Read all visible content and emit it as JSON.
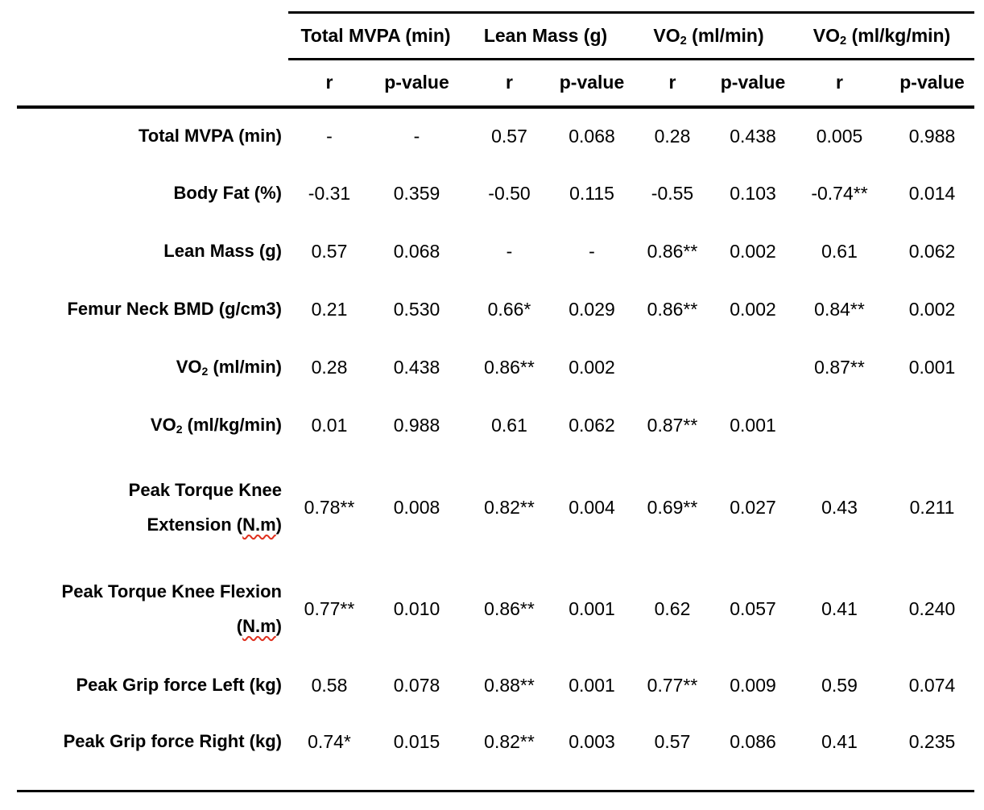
{
  "table": {
    "col_groups": [
      {
        "pre": "Total MVPA (min)",
        "sub": "",
        "post": ""
      },
      {
        "pre": "Lean Mass (g)",
        "sub": "",
        "post": ""
      },
      {
        "pre": "VO",
        "sub": "2",
        "post": " (ml/min)"
      },
      {
        "pre": "VO",
        "sub": "2",
        "post": " (ml/kg/min)"
      }
    ],
    "sub_headers": [
      "r",
      "p-value",
      "r",
      "p-value",
      "r",
      "p-value",
      "r",
      "p-value"
    ],
    "rows": [
      {
        "label": {
          "line1_pre": "Total MVPA (min)",
          "line1_sub": "",
          "line1_post": "",
          "line2_pre": "",
          "line2_wavy": "",
          "line2_post": ""
        },
        "values": [
          "-",
          "-",
          "0.57",
          "0.068",
          "0.28",
          "0.438",
          "0.005",
          "0.988"
        ]
      },
      {
        "label": {
          "line1_pre": "Body Fat (%)",
          "line1_sub": "",
          "line1_post": "",
          "line2_pre": "",
          "line2_wavy": "",
          "line2_post": ""
        },
        "values": [
          "-0.31",
          "0.359",
          "-0.50",
          "0.115",
          "-0.55",
          "0.103",
          "-0.74**",
          "0.014"
        ]
      },
      {
        "label": {
          "line1_pre": "Lean Mass (g)",
          "line1_sub": "",
          "line1_post": "",
          "line2_pre": "",
          "line2_wavy": "",
          "line2_post": ""
        },
        "values": [
          "0.57",
          "0.068",
          "-",
          "-",
          "0.86**",
          "0.002",
          "0.61",
          "0.062"
        ]
      },
      {
        "label": {
          "line1_pre": "Femur Neck BMD (g/cm3)",
          "line1_sub": "",
          "line1_post": "",
          "line2_pre": "",
          "line2_wavy": "",
          "line2_post": ""
        },
        "values": [
          "0.21",
          "0.530",
          "0.66*",
          "0.029",
          "0.86**",
          "0.002",
          "0.84**",
          "0.002"
        ]
      },
      {
        "label": {
          "line1_pre": "VO",
          "line1_sub": "2",
          "line1_post": " (ml/min)",
          "line2_pre": "",
          "line2_wavy": "",
          "line2_post": ""
        },
        "values": [
          "0.28",
          "0.438",
          "0.86**",
          "0.002",
          "",
          "",
          "0.87**",
          "0.001"
        ]
      },
      {
        "label": {
          "line1_pre": "VO",
          "line1_sub": "2",
          "line1_post": " (ml/kg/min)",
          "line2_pre": "",
          "line2_wavy": "",
          "line2_post": ""
        },
        "values": [
          "0.01",
          "0.988",
          "0.61",
          "0.062",
          "0.87**",
          "0.001",
          "",
          ""
        ]
      },
      {
        "label": {
          "line1_pre": "Peak Torque Knee",
          "line1_sub": "",
          "line1_post": "",
          "line2_pre": "Extension (",
          "line2_wavy": "N.m",
          "line2_post": ")"
        },
        "values": [
          "0.78**",
          "0.008",
          "0.82**",
          "0.004",
          "0.69**",
          "0.027",
          "0.43",
          "0.211"
        ]
      },
      {
        "label": {
          "line1_pre": "Peak Torque Knee Flexion",
          "line1_sub": "",
          "line1_post": "",
          "line2_pre": "(",
          "line2_wavy": "N.m",
          "line2_post": ")"
        },
        "values": [
          "0.77**",
          "0.010",
          "0.86**",
          "0.001",
          "0.62",
          "0.057",
          "0.41",
          "0.240"
        ]
      },
      {
        "label": {
          "line1_pre": "Peak Grip force Left (kg)",
          "line1_sub": "",
          "line1_post": "",
          "line2_pre": "",
          "line2_wavy": "",
          "line2_post": ""
        },
        "values": [
          "0.58",
          "0.078",
          "0.88**",
          "0.001",
          "0.77**",
          "0.009",
          "0.59",
          "0.074"
        ]
      },
      {
        "label": {
          "line1_pre": "Peak Grip force Right (kg)",
          "line1_sub": "",
          "line1_post": "",
          "line2_pre": "",
          "line2_wavy": "",
          "line2_post": ""
        },
        "values": [
          "0.74*",
          "0.015",
          "0.82**",
          "0.003",
          "0.57",
          "0.086",
          "0.41",
          "0.235"
        ]
      }
    ]
  }
}
